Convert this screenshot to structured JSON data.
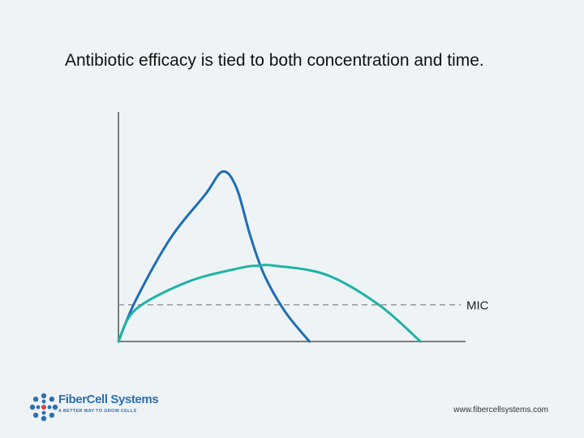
{
  "slide": {
    "title": "Antibiotic efficacy is tied to both concentration and time.",
    "website": "www.fibercellsystems.com"
  },
  "logo": {
    "name": "FiberCell Systems",
    "tagline": "A BETTER WAY TO GROW CELLS",
    "icon": "flower-dots-icon"
  },
  "colors": {
    "curve_peak": "#1d6db5",
    "curve_broad": "#1fb3a6",
    "axis": "#555555",
    "mic_line": "#999999"
  },
  "chart_data": {
    "type": "line",
    "title": "",
    "xlabel": "",
    "ylabel": "",
    "xlim": [
      0,
      100
    ],
    "ylim": [
      0,
      100
    ],
    "grid": false,
    "reference_lines": [
      {
        "label": "MIC",
        "y": 16
      }
    ],
    "series": [
      {
        "x": [
          0,
          5,
          15,
          25,
          30,
          34,
          38,
          42,
          48,
          55
        ],
        "y": [
          0,
          18,
          45,
          64,
          74,
          67,
          46,
          29,
          13,
          0
        ]
      },
      {
        "x": [
          0,
          5,
          20,
          35,
          40,
          45,
          60,
          75,
          87
        ],
        "y": [
          0,
          14,
          26,
          32,
          33,
          33,
          29,
          16,
          0
        ]
      }
    ]
  }
}
